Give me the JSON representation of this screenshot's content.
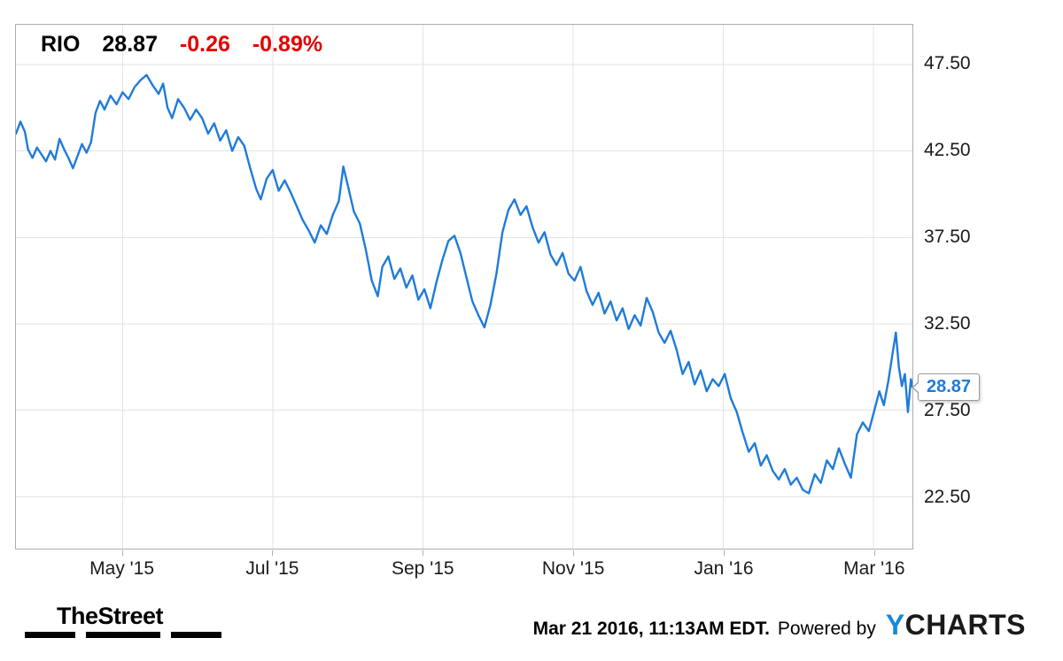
{
  "quote": {
    "symbol": "RIO",
    "price": "28.87",
    "change": "-0.26",
    "change_pct": "-0.89%"
  },
  "colors": {
    "line": "#1f7bd9",
    "negative": "#e60000",
    "callout_text": "#1f7bd9",
    "grid": "#e3e3e3",
    "border": "#adadad",
    "ycharts_y": "#1789d6",
    "ycharts_rest": "#1a1a1a"
  },
  "footer": {
    "brand": "TheStreet",
    "timestamp": "Mar 21 2016, 11:13AM EDT.",
    "powered_by": "Powered by",
    "ycharts_y": "Y",
    "ycharts_rest": "CHARTS"
  },
  "chart_data": {
    "type": "line",
    "title": "RIO 28.87 -0.26 -0.89%",
    "xlabel": "",
    "ylabel": "",
    "legend": false,
    "grid": true,
    "xlim": [
      -0.42,
      11.52
    ],
    "ylim": [
      19.5,
      49.8
    ],
    "last_price_label": "28.87",
    "last_price_value": 28.87,
    "yticks": [
      {
        "value": 47.5,
        "label": "47.50"
      },
      {
        "value": 42.5,
        "label": "42.50"
      },
      {
        "value": 37.5,
        "label": "37.50"
      },
      {
        "value": 32.5,
        "label": "32.50"
      },
      {
        "value": 27.5,
        "label": "27.50"
      },
      {
        "value": 22.5,
        "label": "22.50"
      }
    ],
    "xticks": [
      {
        "value": 1,
        "label": "May '15"
      },
      {
        "value": 3,
        "label": "Jul '15"
      },
      {
        "value": 5,
        "label": "Sep '15"
      },
      {
        "value": 7,
        "label": "Nov '15"
      },
      {
        "value": 9,
        "label": "Jan '16"
      },
      {
        "value": 11,
        "label": "Mar '16"
      }
    ],
    "x_unit": "months since 2015-04-01",
    "series": [
      {
        "name": "RIO",
        "color": "#1f7bd9",
        "points": [
          [
            -0.42,
            43.5
          ],
          [
            -0.36,
            44.2
          ],
          [
            -0.3,
            43.6
          ],
          [
            -0.26,
            42.6
          ],
          [
            -0.2,
            42.1
          ],
          [
            -0.14,
            42.7
          ],
          [
            -0.08,
            42.3
          ],
          [
            -0.02,
            41.9
          ],
          [
            0.04,
            42.5
          ],
          [
            0.1,
            42.0
          ],
          [
            0.16,
            43.2
          ],
          [
            0.22,
            42.6
          ],
          [
            0.28,
            42.1
          ],
          [
            0.34,
            41.5
          ],
          [
            0.4,
            42.2
          ],
          [
            0.46,
            42.9
          ],
          [
            0.52,
            42.4
          ],
          [
            0.58,
            43.0
          ],
          [
            0.64,
            44.7
          ],
          [
            0.7,
            45.4
          ],
          [
            0.76,
            44.9
          ],
          [
            0.84,
            45.7
          ],
          [
            0.92,
            45.2
          ],
          [
            1.0,
            45.9
          ],
          [
            1.08,
            45.5
          ],
          [
            1.16,
            46.2
          ],
          [
            1.24,
            46.6
          ],
          [
            1.32,
            46.9
          ],
          [
            1.4,
            46.3
          ],
          [
            1.48,
            45.8
          ],
          [
            1.54,
            46.4
          ],
          [
            1.6,
            45.0
          ],
          [
            1.66,
            44.4
          ],
          [
            1.74,
            45.5
          ],
          [
            1.82,
            45.0
          ],
          [
            1.9,
            44.3
          ],
          [
            1.98,
            44.9
          ],
          [
            2.06,
            44.4
          ],
          [
            2.14,
            43.5
          ],
          [
            2.22,
            44.1
          ],
          [
            2.3,
            43.1
          ],
          [
            2.38,
            43.7
          ],
          [
            2.46,
            42.5
          ],
          [
            2.54,
            43.3
          ],
          [
            2.62,
            42.8
          ],
          [
            2.7,
            41.5
          ],
          [
            2.78,
            40.3
          ],
          [
            2.84,
            39.7
          ],
          [
            2.92,
            40.9
          ],
          [
            3.0,
            41.4
          ],
          [
            3.08,
            40.2
          ],
          [
            3.16,
            40.8
          ],
          [
            3.24,
            40.1
          ],
          [
            3.32,
            39.3
          ],
          [
            3.4,
            38.5
          ],
          [
            3.48,
            37.9
          ],
          [
            3.56,
            37.2
          ],
          [
            3.64,
            38.2
          ],
          [
            3.72,
            37.7
          ],
          [
            3.8,
            38.8
          ],
          [
            3.88,
            39.6
          ],
          [
            3.94,
            41.6
          ],
          [
            4.0,
            40.5
          ],
          [
            4.08,
            39.0
          ],
          [
            4.16,
            38.3
          ],
          [
            4.24,
            36.8
          ],
          [
            4.32,
            35.0
          ],
          [
            4.4,
            34.1
          ],
          [
            4.46,
            35.8
          ],
          [
            4.54,
            36.4
          ],
          [
            4.62,
            35.1
          ],
          [
            4.7,
            35.7
          ],
          [
            4.78,
            34.6
          ],
          [
            4.86,
            35.3
          ],
          [
            4.94,
            33.9
          ],
          [
            5.02,
            34.5
          ],
          [
            5.1,
            33.4
          ],
          [
            5.18,
            34.9
          ],
          [
            5.26,
            36.2
          ],
          [
            5.34,
            37.3
          ],
          [
            5.42,
            37.6
          ],
          [
            5.5,
            36.6
          ],
          [
            5.58,
            35.2
          ],
          [
            5.66,
            33.8
          ],
          [
            5.74,
            33.0
          ],
          [
            5.82,
            32.3
          ],
          [
            5.9,
            33.6
          ],
          [
            5.98,
            35.4
          ],
          [
            6.06,
            37.8
          ],
          [
            6.14,
            39.1
          ],
          [
            6.22,
            39.7
          ],
          [
            6.3,
            38.8
          ],
          [
            6.38,
            39.3
          ],
          [
            6.46,
            38.1
          ],
          [
            6.54,
            37.2
          ],
          [
            6.62,
            37.8
          ],
          [
            6.7,
            36.5
          ],
          [
            6.78,
            35.9
          ],
          [
            6.86,
            36.6
          ],
          [
            6.94,
            35.4
          ],
          [
            7.02,
            35.0
          ],
          [
            7.1,
            35.8
          ],
          [
            7.18,
            34.4
          ],
          [
            7.26,
            33.6
          ],
          [
            7.34,
            34.3
          ],
          [
            7.42,
            33.1
          ],
          [
            7.5,
            33.8
          ],
          [
            7.58,
            32.7
          ],
          [
            7.66,
            33.4
          ],
          [
            7.74,
            32.2
          ],
          [
            7.82,
            33.0
          ],
          [
            7.9,
            32.4
          ],
          [
            7.98,
            34.0
          ],
          [
            8.06,
            33.2
          ],
          [
            8.14,
            32.0
          ],
          [
            8.22,
            31.4
          ],
          [
            8.3,
            32.1
          ],
          [
            8.38,
            31.0
          ],
          [
            8.46,
            29.6
          ],
          [
            8.54,
            30.3
          ],
          [
            8.62,
            29.0
          ],
          [
            8.7,
            29.8
          ],
          [
            8.78,
            28.6
          ],
          [
            8.86,
            29.3
          ],
          [
            8.94,
            28.9
          ],
          [
            9.02,
            29.6
          ],
          [
            9.1,
            28.2
          ],
          [
            9.18,
            27.4
          ],
          [
            9.26,
            26.2
          ],
          [
            9.34,
            25.1
          ],
          [
            9.42,
            25.6
          ],
          [
            9.5,
            24.3
          ],
          [
            9.58,
            24.9
          ],
          [
            9.66,
            24.0
          ],
          [
            9.74,
            23.5
          ],
          [
            9.82,
            24.1
          ],
          [
            9.9,
            23.2
          ],
          [
            9.98,
            23.6
          ],
          [
            10.06,
            22.9
          ],
          [
            10.14,
            22.7
          ],
          [
            10.22,
            23.8
          ],
          [
            10.3,
            23.3
          ],
          [
            10.38,
            24.6
          ],
          [
            10.46,
            24.1
          ],
          [
            10.54,
            25.3
          ],
          [
            10.62,
            24.4
          ],
          [
            10.7,
            23.6
          ],
          [
            10.78,
            26.1
          ],
          [
            10.86,
            26.8
          ],
          [
            10.94,
            26.3
          ],
          [
            11.02,
            27.6
          ],
          [
            11.08,
            28.6
          ],
          [
            11.14,
            27.8
          ],
          [
            11.2,
            29.2
          ],
          [
            11.26,
            30.9
          ],
          [
            11.3,
            32.0
          ],
          [
            11.34,
            30.0
          ],
          [
            11.38,
            28.9
          ],
          [
            11.42,
            29.6
          ],
          [
            11.46,
            27.4
          ],
          [
            11.5,
            29.3
          ],
          [
            11.52,
            28.87
          ]
        ]
      }
    ]
  }
}
